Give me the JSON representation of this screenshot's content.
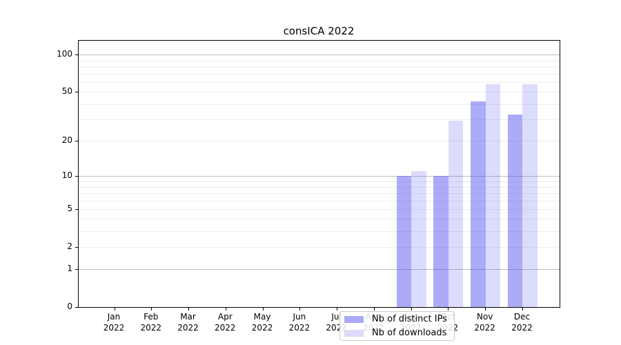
{
  "title": "consICA 2022",
  "chart_data": {
    "type": "bar",
    "title": "consICA 2022",
    "categories": [
      "Jan",
      "Feb",
      "Mar",
      "Apr",
      "May",
      "Jun",
      "Jul",
      "Aug",
      "Sep",
      "Oct",
      "Nov",
      "Dec"
    ],
    "category_year": "2022",
    "series": [
      {
        "name": "Nb of distinct IPs",
        "legend_color": "#abaaf7",
        "fill": "rgba(70,69,240,0.45)",
        "values": [
          0,
          0,
          0,
          0,
          0,
          0,
          0,
          0,
          10,
          10,
          42,
          33
        ]
      },
      {
        "name": "Nb of downloads",
        "legend_color": "#dcdbf8",
        "fill": "rgba(70,69,240,0.19)",
        "values": [
          0,
          0,
          0,
          0,
          0,
          0,
          0,
          0,
          11,
          29,
          58,
          58
        ]
      }
    ],
    "xlabel": "",
    "ylabel": "",
    "y_scale": "log1p",
    "ylim": [
      0,
      126
    ],
    "y_ticks": [
      100,
      50,
      20,
      10,
      5,
      2,
      1,
      0
    ],
    "minor_gridlines": [
      2,
      3,
      4,
      5,
      6,
      7,
      8,
      9,
      20,
      30,
      40,
      50,
      60,
      70,
      80,
      90
    ],
    "major_gridlines": [
      1,
      10,
      100
    ],
    "legend": {
      "position": "lower center",
      "entries": [
        "Nb of distinct IPs",
        "Nb of downloads"
      ]
    },
    "colors": {
      "grid_major": "#bdbdbd",
      "grid_minor": "#ededed",
      "axis": "#000000",
      "background": "#ffffff"
    }
  }
}
